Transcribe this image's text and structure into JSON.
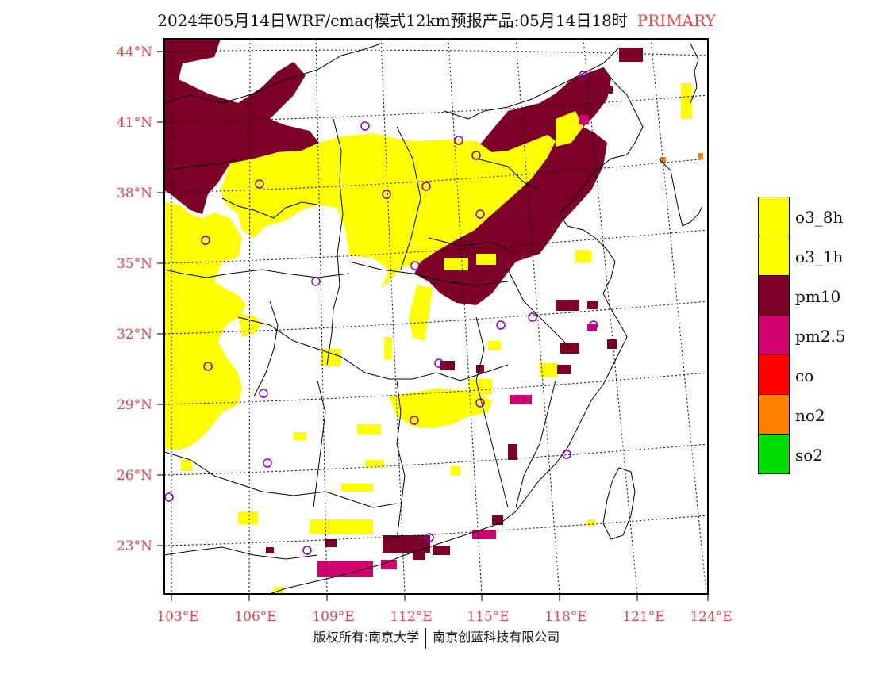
{
  "title": {
    "text": "2024年05月14日WRF/cmaq模式12km预报产品:05月14日18时",
    "tag": "PRIMARY"
  },
  "copyright": {
    "left": "版权所有:南京大学",
    "right": "南京创蓝科技有限公司"
  },
  "axes": {
    "lat_labels": [
      "44°N",
      "41°N",
      "38°N",
      "35°N",
      "32°N",
      "29°N",
      "26°N",
      "23°N"
    ],
    "lon_labels": [
      "103°E",
      "106°E",
      "109°E",
      "112°E",
      "115°E",
      "118°E",
      "121°E",
      "124°E"
    ],
    "label_color": "#e04848"
  },
  "legend": [
    {
      "label": "o3_8h",
      "color": "#ffff00"
    },
    {
      "label": "o3_1h",
      "color": "#ffff00"
    },
    {
      "label": "pm10",
      "color": "#7d0028"
    },
    {
      "label": "pm2.5",
      "color": "#d0006e"
    },
    {
      "label": "co",
      "color": "#ff0000"
    },
    {
      "label": "no2",
      "color": "#ff7f00"
    },
    {
      "label": "so2",
      "color": "#00dd00"
    }
  ],
  "colors": {
    "o3": "#ffff00",
    "pm10": "#7d0028",
    "pm25": "#d0006e",
    "no2": "#ff7f00",
    "station": "#8a00c8",
    "boundary": "#000000"
  }
}
